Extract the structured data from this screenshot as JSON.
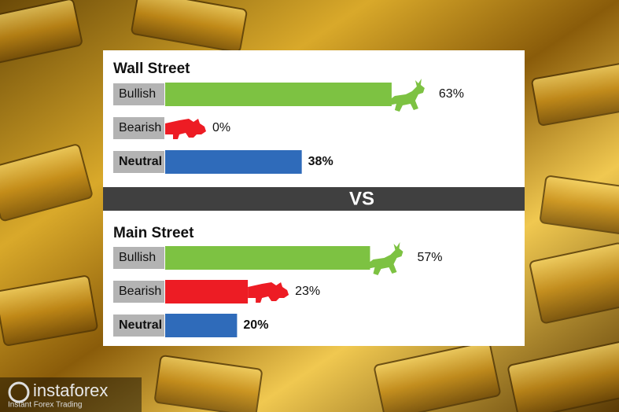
{
  "chart_data": [
    {
      "type": "bar",
      "title": "Wall Street",
      "categories": [
        "Bullish",
        "Bearish",
        "Neutral"
      ],
      "values": [
        63,
        0,
        38
      ],
      "value_labels": [
        "63%",
        "0%",
        "38%"
      ],
      "colors": [
        "#7dc242",
        "#ed1c24",
        "#2f6bba"
      ]
    },
    {
      "type": "bar",
      "title": "Main Street",
      "categories": [
        "Bullish",
        "Bearish",
        "Neutral"
      ],
      "values": [
        57,
        23,
        20
      ],
      "value_labels": [
        "57%",
        "23%",
        "20%"
      ],
      "colors": [
        "#7dc242",
        "#ed1c24",
        "#2f6bba"
      ]
    }
  ],
  "separator": "VS",
  "logo": {
    "name": "instaforex",
    "tagline": "Instant Forex Trading"
  }
}
